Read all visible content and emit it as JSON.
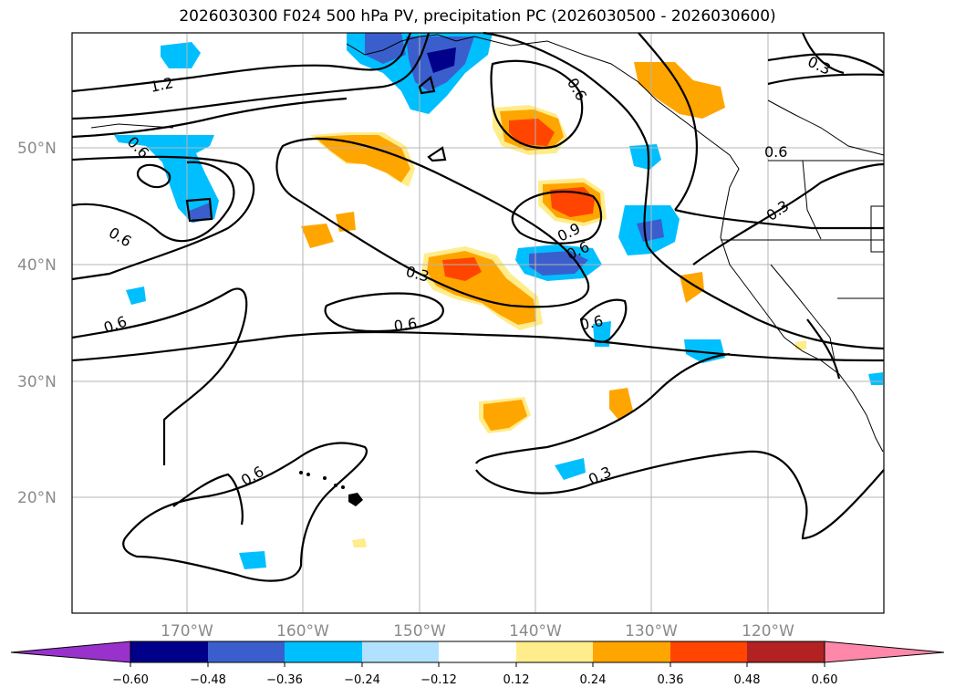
{
  "title": "2026030300 F024 500 hPa PV, precipitation PC (2026030500 - 2026030600)",
  "lat_labels": [
    "50°N",
    "40°N",
    "30°N",
    "20°N"
  ],
  "lon_labels": [
    "170°W",
    "160°W",
    "150°W",
    "140°W",
    "130°W",
    "120°W"
  ],
  "contour_labels": [
    "1.2",
    "0.6",
    "0.6",
    "0.6",
    "0.3",
    "0.6",
    "0.9",
    "0.6",
    "0.6",
    "0.6",
    "0.3",
    "0.3",
    "0.6",
    "0.3",
    "0.6"
  ],
  "colorbar": {
    "ticks": [
      "−0.60",
      "−0.48",
      "−0.36",
      "−0.24",
      "−0.12",
      "0.12",
      "0.24",
      "0.36",
      "0.48",
      "0.60"
    ],
    "colors": [
      "#9932cc",
      "#00008b",
      "#3a5fcd",
      "#00bfff",
      "#b0e2ff",
      "#ffffff",
      "#ffec8b",
      "#ffa500",
      "#ff4500",
      "#b22222",
      "#ff88aa"
    ]
  },
  "colors": {
    "ocean": "#ffffff",
    "contour": "#000000",
    "grid": "#b4b4b4",
    "label_gray": "#8a8a8a"
  }
}
